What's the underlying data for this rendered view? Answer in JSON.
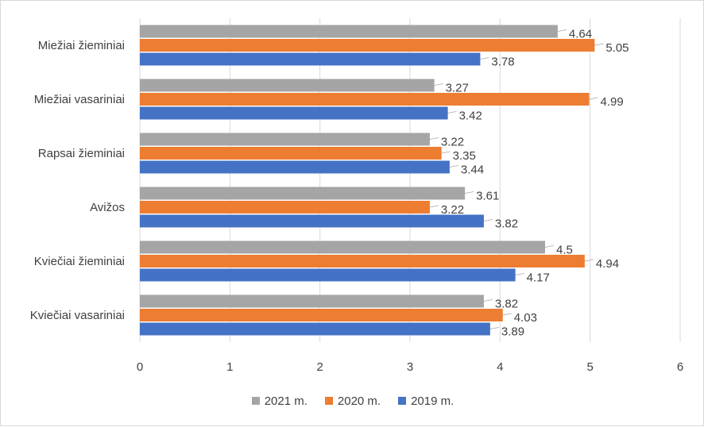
{
  "chart_data": {
    "type": "bar",
    "orientation": "horizontal",
    "categories": [
      "Miežiai žieminiai",
      "Miežiai vasariniai",
      "Rapsai žieminiai",
      "Avižos",
      "Kviečiai žieminiai",
      "Kviečiai vasariniai"
    ],
    "series": [
      {
        "name": "2021 m.",
        "color": "#a5a5a5",
        "values": [
          4.64,
          3.27,
          3.22,
          3.61,
          4.5,
          3.82
        ]
      },
      {
        "name": "2020 m.",
        "color": "#ed7d31",
        "values": [
          5.05,
          4.99,
          3.35,
          3.22,
          4.94,
          4.03
        ]
      },
      {
        "name": "2019 m.",
        "color": "#4472c4",
        "values": [
          3.78,
          3.42,
          3.44,
          3.82,
          4.17,
          3.89
        ]
      }
    ],
    "xlim": [
      0,
      6
    ],
    "xticks": [
      "0",
      "1",
      "2",
      "3",
      "4",
      "5",
      "6"
    ],
    "grid": true,
    "data_labels": true,
    "legend_position": "bottom",
    "title": "",
    "xlabel": "",
    "ylabel": ""
  }
}
